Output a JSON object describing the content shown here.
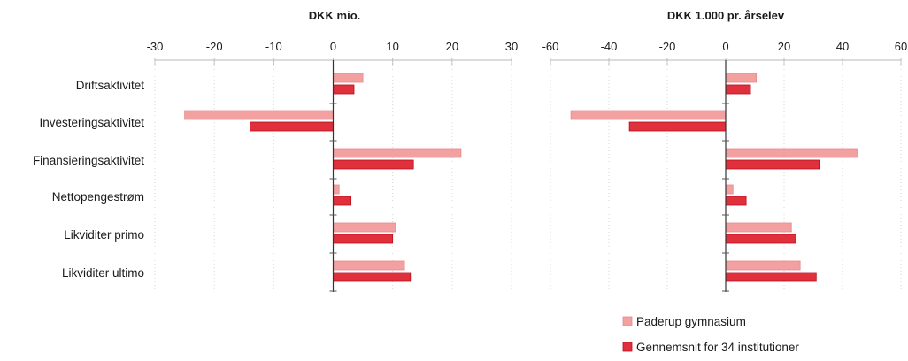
{
  "chart_data": [
    {
      "type": "bar",
      "orientation": "horizontal",
      "title": "DKK mio.",
      "categories": [
        "Driftsaktivitet",
        "Investeringsaktivitet",
        "Finansieringsaktivitet",
        "Nettopengestrøm",
        "Likviditer primo",
        "Likviditer ultimo"
      ],
      "xlim": [
        -30,
        30
      ],
      "xticks": [
        -30,
        -20,
        -10,
        0,
        10,
        20,
        30
      ],
      "series": [
        {
          "name": "Paderup gymnasium",
          "color": "#f2a0a0",
          "values": [
            5,
            -25,
            21.5,
            1,
            10.5,
            12
          ]
        },
        {
          "name": "Gennemsnit for 34 institutioner",
          "color": "#e0303c",
          "values": [
            3.5,
            -14,
            13.5,
            3,
            10,
            13
          ]
        }
      ]
    },
    {
      "type": "bar",
      "orientation": "horizontal",
      "title": "DKK 1.000 pr. årselev",
      "categories": [
        "Driftsaktivitet",
        "Investeringsaktivitet",
        "Finansieringsaktivitet",
        "Nettopengestrøm",
        "Likviditer primo",
        "Likviditer ultimo"
      ],
      "xlim": [
        -60,
        60
      ],
      "xticks": [
        -60,
        -40,
        -20,
        0,
        20,
        40,
        60
      ],
      "series": [
        {
          "name": "Paderup gymnasium",
          "color": "#f2a0a0",
          "values": [
            10.5,
            -53,
            45,
            2.5,
            22.5,
            25.5
          ]
        },
        {
          "name": "Gennemsnit for 34 institutioner",
          "color": "#e0303c",
          "values": [
            8.5,
            -33,
            32,
            7,
            24,
            31
          ]
        }
      ]
    }
  ],
  "legend": {
    "placement": "bottom-right",
    "items": [
      {
        "label": "Paderup gymnasium",
        "color": "#f2a0a0"
      },
      {
        "label": "Gennemsnit for 34 institutioner",
        "color": "#e0303c"
      }
    ]
  }
}
